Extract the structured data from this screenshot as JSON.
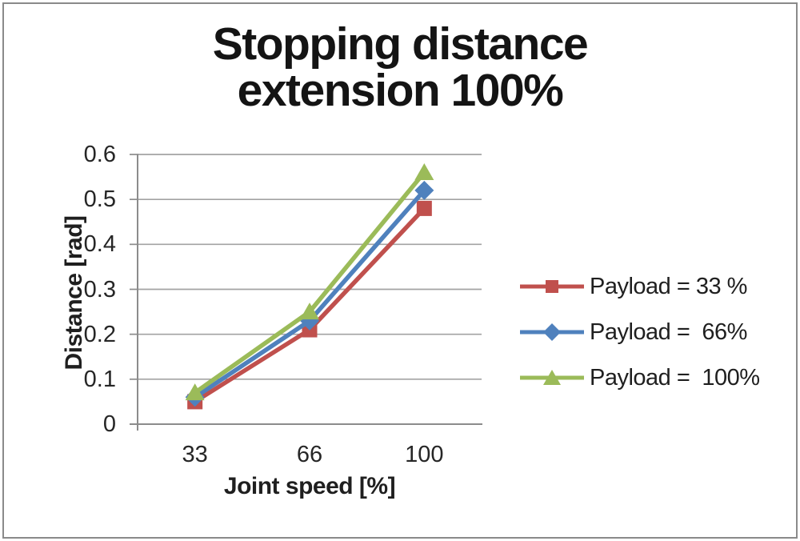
{
  "figure": {
    "background": "#ffffff",
    "border_color": "#8a8a8a"
  },
  "chart_data": {
    "type": "line",
    "title": "Stopping distance extension 100%",
    "title_lines": [
      "Stopping distance",
      "extension 100%"
    ],
    "xlabel": "Joint speed [%]",
    "ylabel": "Distance [rad]",
    "categories": [
      "33",
      "66",
      "100"
    ],
    "x_values": [
      33,
      66,
      100
    ],
    "y_ticks": [
      "0",
      "0.1",
      "0.2",
      "0.3",
      "0.4",
      "0.5",
      "0.6"
    ],
    "ylim": [
      0,
      0.6
    ],
    "grid": true,
    "legend_position": "right",
    "series": [
      {
        "name": "Payload = 33 %",
        "marker": "square",
        "color": "#C0504D",
        "values": [
          0.05,
          0.21,
          0.48
        ]
      },
      {
        "name": "Payload =  66%",
        "marker": "diamond",
        "color": "#4F81BD",
        "values": [
          0.06,
          0.23,
          0.52
        ]
      },
      {
        "name": "Payload =  100%",
        "marker": "triangle",
        "color": "#9BBB59",
        "values": [
          0.07,
          0.25,
          0.56
        ]
      }
    ],
    "colors": {
      "gridline": "#a3a3a3",
      "axis": "#8c8c8c",
      "text": "#262626",
      "title": "#141414"
    }
  }
}
